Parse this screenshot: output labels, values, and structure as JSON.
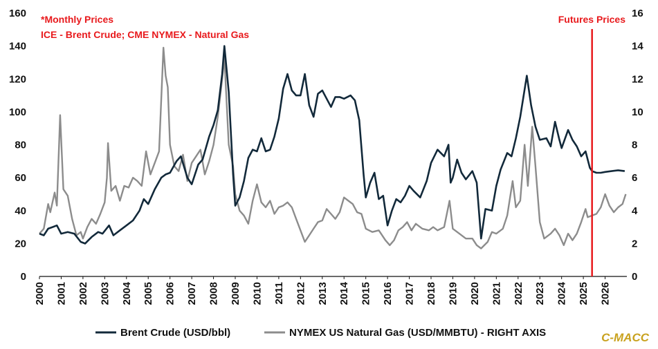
{
  "chart_data": {
    "type": "line",
    "annotations": {
      "note_line1": "*Monthly Prices",
      "note_line2": "ICE - Brent Crude; CME NYMEX - Natural Gas",
      "futures_label": "Futures Prices",
      "futures_marker_year": 2025.4
    },
    "brand": "C-MACC",
    "xlim": [
      2000,
      2027
    ],
    "x_ticks": [
      "2000",
      "2001",
      "2002",
      "2003",
      "2004",
      "2005",
      "2006",
      "2007",
      "2008",
      "2009",
      "2010",
      "2011",
      "2012",
      "2013",
      "2014",
      "2015",
      "2016",
      "2017",
      "2018",
      "2019",
      "2020",
      "2021",
      "2022",
      "2023",
      "2024",
      "2025",
      "2026"
    ],
    "y_left": {
      "ylim": [
        0,
        160
      ],
      "ticks": [
        "0",
        "20",
        "40",
        "60",
        "80",
        "100",
        "120",
        "140",
        "160"
      ]
    },
    "y_right": {
      "ylim": [
        0,
        16
      ],
      "ticks": [
        "0",
        "2",
        "4",
        "6",
        "8",
        "10",
        "12",
        "14",
        "16"
      ]
    },
    "grid": false,
    "legend_placement": "bottom",
    "colors": {
      "brent": "#12293a",
      "gas": "#8c8c8c",
      "futures": "#e8191c",
      "brand": "#c9a21f"
    },
    "series": [
      {
        "name": "Brent Crude (USD/bbl)",
        "axis": "left",
        "points": [
          [
            2000.0,
            26
          ],
          [
            2000.2,
            25
          ],
          [
            2000.4,
            29
          ],
          [
            2000.6,
            30
          ],
          [
            2000.8,
            31
          ],
          [
            2001.0,
            26
          ],
          [
            2001.3,
            27
          ],
          [
            2001.6,
            26
          ],
          [
            2001.9,
            21
          ],
          [
            2002.1,
            20
          ],
          [
            2002.4,
            24
          ],
          [
            2002.7,
            27
          ],
          [
            2002.9,
            26
          ],
          [
            2003.2,
            31
          ],
          [
            2003.4,
            25
          ],
          [
            2003.7,
            28
          ],
          [
            2004.0,
            31
          ],
          [
            2004.3,
            34
          ],
          [
            2004.6,
            40
          ],
          [
            2004.8,
            47
          ],
          [
            2005.0,
            44
          ],
          [
            2005.3,
            53
          ],
          [
            2005.6,
            60
          ],
          [
            2005.8,
            62
          ],
          [
            2006.0,
            63
          ],
          [
            2006.3,
            70
          ],
          [
            2006.5,
            73
          ],
          [
            2006.8,
            60
          ],
          [
            2007.0,
            56
          ],
          [
            2007.3,
            68
          ],
          [
            2007.5,
            71
          ],
          [
            2007.8,
            85
          ],
          [
            2008.0,
            92
          ],
          [
            2008.2,
            101
          ],
          [
            2008.4,
            123
          ],
          [
            2008.5,
            140
          ],
          [
            2008.7,
            112
          ],
          [
            2008.9,
            62
          ],
          [
            2009.0,
            43
          ],
          [
            2009.2,
            48
          ],
          [
            2009.4,
            58
          ],
          [
            2009.6,
            72
          ],
          [
            2009.8,
            77
          ],
          [
            2010.0,
            76
          ],
          [
            2010.2,
            84
          ],
          [
            2010.4,
            76
          ],
          [
            2010.6,
            77
          ],
          [
            2010.8,
            85
          ],
          [
            2011.0,
            96
          ],
          [
            2011.2,
            114
          ],
          [
            2011.4,
            123
          ],
          [
            2011.6,
            113
          ],
          [
            2011.8,
            110
          ],
          [
            2012.0,
            110
          ],
          [
            2012.2,
            123
          ],
          [
            2012.4,
            104
          ],
          [
            2012.6,
            97
          ],
          [
            2012.8,
            111
          ],
          [
            2013.0,
            113
          ],
          [
            2013.2,
            108
          ],
          [
            2013.4,
            103
          ],
          [
            2013.6,
            109
          ],
          [
            2013.8,
            109
          ],
          [
            2014.0,
            108
          ],
          [
            2014.3,
            110
          ],
          [
            2014.5,
            107
          ],
          [
            2014.7,
            95
          ],
          [
            2014.9,
            62
          ],
          [
            2015.0,
            48
          ],
          [
            2015.2,
            57
          ],
          [
            2015.4,
            63
          ],
          [
            2015.6,
            47
          ],
          [
            2015.8,
            49
          ],
          [
            2016.0,
            31
          ],
          [
            2016.2,
            40
          ],
          [
            2016.4,
            47
          ],
          [
            2016.6,
            45
          ],
          [
            2016.8,
            49
          ],
          [
            2017.0,
            55
          ],
          [
            2017.2,
            52
          ],
          [
            2017.5,
            48
          ],
          [
            2017.8,
            58
          ],
          [
            2018.0,
            69
          ],
          [
            2018.3,
            77
          ],
          [
            2018.6,
            73
          ],
          [
            2018.8,
            80
          ],
          [
            2018.9,
            57
          ],
          [
            2019.0,
            60
          ],
          [
            2019.2,
            71
          ],
          [
            2019.4,
            63
          ],
          [
            2019.6,
            59
          ],
          [
            2019.9,
            64
          ],
          [
            2020.1,
            57
          ],
          [
            2020.3,
            23
          ],
          [
            2020.5,
            41
          ],
          [
            2020.8,
            40
          ],
          [
            2021.0,
            55
          ],
          [
            2021.2,
            65
          ],
          [
            2021.5,
            75
          ],
          [
            2021.7,
            73
          ],
          [
            2021.9,
            84
          ],
          [
            2022.1,
            97
          ],
          [
            2022.4,
            122
          ],
          [
            2022.6,
            104
          ],
          [
            2022.8,
            91
          ],
          [
            2023.0,
            83
          ],
          [
            2023.3,
            84
          ],
          [
            2023.5,
            79
          ],
          [
            2023.7,
            94
          ],
          [
            2023.9,
            83
          ],
          [
            2024.0,
            78
          ],
          [
            2024.3,
            89
          ],
          [
            2024.5,
            83
          ],
          [
            2024.7,
            79
          ],
          [
            2024.9,
            73
          ],
          [
            2025.1,
            76
          ],
          [
            2025.3,
            66
          ],
          [
            2025.4,
            64
          ],
          [
            2025.6,
            63
          ],
          [
            2025.8,
            63
          ],
          [
            2026.0,
            63.5
          ],
          [
            2026.3,
            64
          ],
          [
            2026.6,
            64.5
          ],
          [
            2026.9,
            64
          ]
        ]
      },
      {
        "name": "NYMEX US Natural Gas (USD/MMBTU) - RIGHT AXIS",
        "axis": "right",
        "points": [
          [
            2000.0,
            2.6
          ],
          [
            2000.2,
            2.9
          ],
          [
            2000.4,
            4.4
          ],
          [
            2000.5,
            3.9
          ],
          [
            2000.7,
            5.1
          ],
          [
            2000.8,
            4.3
          ],
          [
            2000.95,
            9.8
          ],
          [
            2001.1,
            5.3
          ],
          [
            2001.3,
            4.9
          ],
          [
            2001.5,
            3.5
          ],
          [
            2001.7,
            2.5
          ],
          [
            2001.9,
            2.7
          ],
          [
            2002.0,
            2.3
          ],
          [
            2002.2,
            3.0
          ],
          [
            2002.4,
            3.5
          ],
          [
            2002.6,
            3.2
          ],
          [
            2002.8,
            3.8
          ],
          [
            2003.0,
            4.5
          ],
          [
            2003.1,
            6.0
          ],
          [
            2003.15,
            8.1
          ],
          [
            2003.3,
            5.2
          ],
          [
            2003.5,
            5.5
          ],
          [
            2003.7,
            4.6
          ],
          [
            2003.9,
            5.5
          ],
          [
            2004.1,
            5.4
          ],
          [
            2004.3,
            6.0
          ],
          [
            2004.5,
            5.8
          ],
          [
            2004.7,
            5.5
          ],
          [
            2004.9,
            7.6
          ],
          [
            2005.1,
            6.2
          ],
          [
            2005.3,
            6.9
          ],
          [
            2005.5,
            7.6
          ],
          [
            2005.7,
            13.9
          ],
          [
            2005.8,
            12.2
          ],
          [
            2005.9,
            11.5
          ],
          [
            2006.0,
            8.0
          ],
          [
            2006.2,
            6.7
          ],
          [
            2006.4,
            6.4
          ],
          [
            2006.6,
            7.4
          ],
          [
            2006.8,
            5.8
          ],
          [
            2007.0,
            6.9
          ],
          [
            2007.2,
            7.3
          ],
          [
            2007.4,
            7.7
          ],
          [
            2007.6,
            6.2
          ],
          [
            2007.8,
            7.0
          ],
          [
            2008.0,
            8.0
          ],
          [
            2008.2,
            9.7
          ],
          [
            2008.4,
            12.0
          ],
          [
            2008.5,
            13.3
          ],
          [
            2008.7,
            8.0
          ],
          [
            2008.9,
            6.7
          ],
          [
            2009.0,
            5.0
          ],
          [
            2009.2,
            4.0
          ],
          [
            2009.4,
            3.7
          ],
          [
            2009.6,
            3.2
          ],
          [
            2009.8,
            4.6
          ],
          [
            2010.0,
            5.6
          ],
          [
            2010.2,
            4.5
          ],
          [
            2010.4,
            4.2
          ],
          [
            2010.6,
            4.6
          ],
          [
            2010.8,
            3.8
          ],
          [
            2011.0,
            4.2
          ],
          [
            2011.2,
            4.3
          ],
          [
            2011.4,
            4.5
          ],
          [
            2011.6,
            4.2
          ],
          [
            2011.8,
            3.5
          ],
          [
            2012.0,
            2.8
          ],
          [
            2012.2,
            2.1
          ],
          [
            2012.4,
            2.5
          ],
          [
            2012.6,
            2.9
          ],
          [
            2012.8,
            3.3
          ],
          [
            2013.0,
            3.4
          ],
          [
            2013.2,
            4.1
          ],
          [
            2013.4,
            3.8
          ],
          [
            2013.6,
            3.5
          ],
          [
            2013.8,
            3.9
          ],
          [
            2014.0,
            4.8
          ],
          [
            2014.2,
            4.6
          ],
          [
            2014.4,
            4.4
          ],
          [
            2014.6,
            3.9
          ],
          [
            2014.8,
            3.8
          ],
          [
            2015.0,
            2.9
          ],
          [
            2015.3,
            2.7
          ],
          [
            2015.6,
            2.8
          ],
          [
            2015.9,
            2.2
          ],
          [
            2016.1,
            1.9
          ],
          [
            2016.3,
            2.2
          ],
          [
            2016.5,
            2.8
          ],
          [
            2016.7,
            3.0
          ],
          [
            2016.9,
            3.3
          ],
          [
            2017.1,
            2.8
          ],
          [
            2017.3,
            3.2
          ],
          [
            2017.6,
            2.9
          ],
          [
            2017.9,
            2.8
          ],
          [
            2018.1,
            3.0
          ],
          [
            2018.3,
            2.8
          ],
          [
            2018.6,
            3.0
          ],
          [
            2018.85,
            4.6
          ],
          [
            2019.0,
            2.9
          ],
          [
            2019.3,
            2.6
          ],
          [
            2019.6,
            2.3
          ],
          [
            2019.9,
            2.3
          ],
          [
            2020.1,
            1.9
          ],
          [
            2020.3,
            1.7
          ],
          [
            2020.6,
            2.1
          ],
          [
            2020.8,
            2.7
          ],
          [
            2021.0,
            2.6
          ],
          [
            2021.3,
            2.9
          ],
          [
            2021.5,
            3.7
          ],
          [
            2021.75,
            5.8
          ],
          [
            2021.9,
            4.2
          ],
          [
            2022.1,
            4.6
          ],
          [
            2022.3,
            8.0
          ],
          [
            2022.45,
            5.5
          ],
          [
            2022.65,
            9.1
          ],
          [
            2022.8,
            6.7
          ],
          [
            2023.0,
            3.3
          ],
          [
            2023.2,
            2.3
          ],
          [
            2023.5,
            2.6
          ],
          [
            2023.7,
            2.9
          ],
          [
            2023.9,
            2.5
          ],
          [
            2024.1,
            1.9
          ],
          [
            2024.3,
            2.6
          ],
          [
            2024.5,
            2.2
          ],
          [
            2024.7,
            2.6
          ],
          [
            2024.9,
            3.3
          ],
          [
            2025.1,
            4.1
          ],
          [
            2025.2,
            3.6
          ],
          [
            2025.4,
            3.7
          ],
          [
            2025.6,
            3.8
          ],
          [
            2025.8,
            4.2
          ],
          [
            2026.0,
            5.0
          ],
          [
            2026.2,
            4.3
          ],
          [
            2026.4,
            3.9
          ],
          [
            2026.6,
            4.2
          ],
          [
            2026.8,
            4.4
          ],
          [
            2026.95,
            5.0
          ]
        ]
      }
    ]
  }
}
